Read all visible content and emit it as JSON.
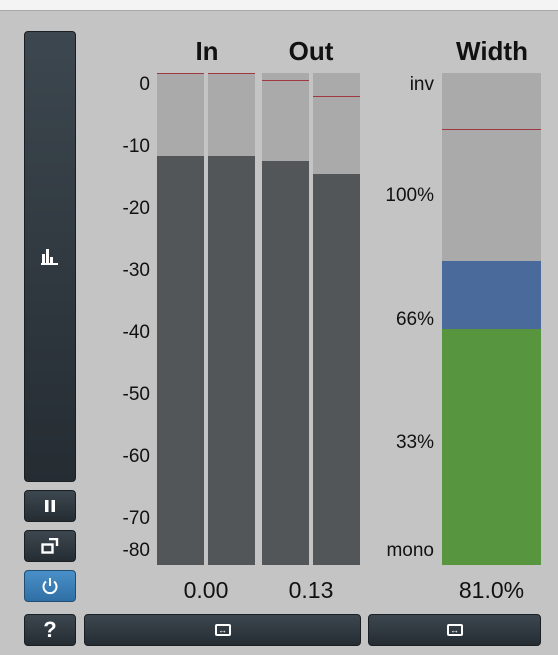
{
  "headers": {
    "in": "In",
    "out": "Out",
    "width": "Width"
  },
  "db_scale": [
    "0",
    "-10",
    "-20",
    "-30",
    "-40",
    "-50",
    "-60",
    "-70",
    "-80"
  ],
  "width_scale": [
    "inv",
    "100%",
    "66%",
    "33%",
    "mono"
  ],
  "readouts": {
    "in": "0.00",
    "out": "0.13",
    "width": "81.0%"
  },
  "meters": {
    "in_left": {
      "level_db": -11.5,
      "peak_db": 0
    },
    "in_right": {
      "level_db": -11.5,
      "peak_db": 0
    },
    "out_left": {
      "level_db": -12.2,
      "peak_db": -0.5
    },
    "out_right": {
      "level_db": -14.3,
      "peak_db": -3
    }
  },
  "width_meter": {
    "stereo_fraction": 0.81,
    "peak_fraction": 0.9
  },
  "colors": {
    "background": "#c4c4c4",
    "meter_track": "#aaaaaa",
    "meter_fill": "#525659",
    "peak_line": "#a0393f",
    "width_green": "#58953f",
    "width_blue": "#4a6a9c",
    "button_dark": "#2d363c",
    "button_active": "#3a82bd"
  },
  "controls": {
    "analyzer_icon": "bar-graph-icon",
    "pause_icon": "pause-icon",
    "detach_icon": "external-window-icon",
    "power_icon": "power-icon",
    "help_label": "?",
    "resize_icon": "horizontal-resize-icon"
  }
}
